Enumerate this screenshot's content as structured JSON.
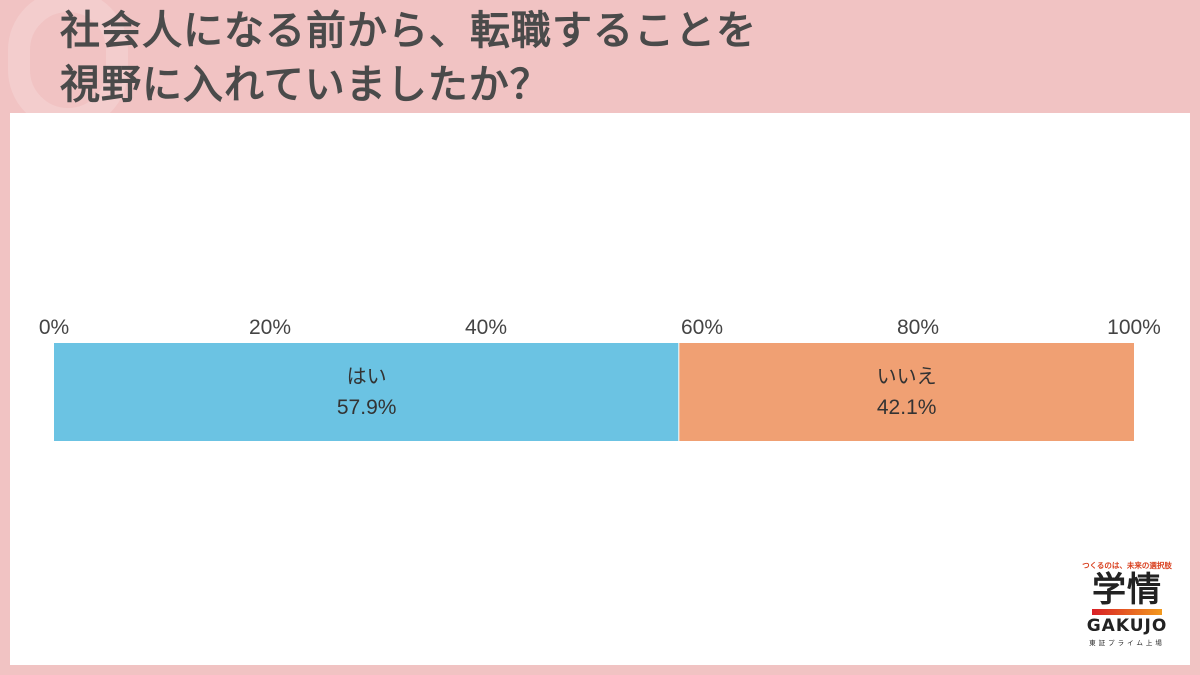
{
  "title_lines": [
    "社会人になる前から、転職することを",
    "視野に入れていましたか？"
  ],
  "logo": {
    "tagline": "つくるのは、未来の選択肢",
    "name_ja": "学情",
    "name_en": "GAKUJO",
    "listing": "東証プライム上場"
  },
  "chart_data": {
    "type": "bar",
    "orientation": "horizontal-stacked-100",
    "xlim": [
      0,
      100
    ],
    "ticks": [
      "0%",
      "20%",
      "40%",
      "60%",
      "80%",
      "100%"
    ],
    "tick_values": [
      0,
      20,
      40,
      60,
      80,
      100
    ],
    "series": [
      {
        "name": "はい",
        "value": 57.9,
        "label": "57.9%",
        "color": "#6bc3e3"
      },
      {
        "name": "いいえ",
        "value": 42.1,
        "label": "42.1%",
        "color": "#f0a073"
      }
    ],
    "grid": false
  }
}
